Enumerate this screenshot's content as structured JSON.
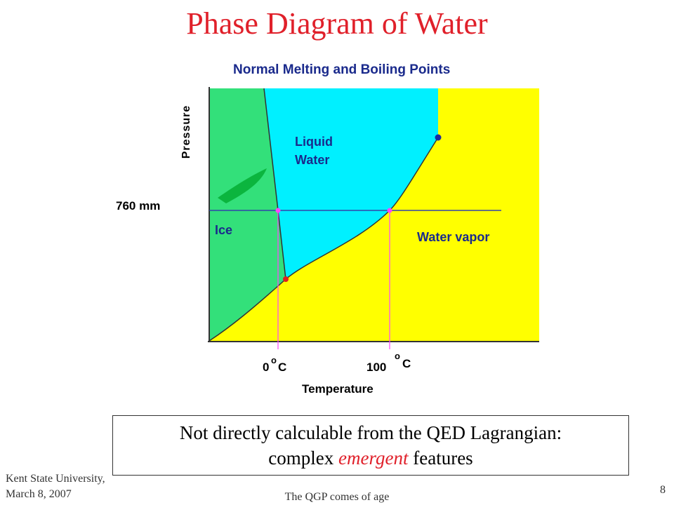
{
  "slide": {
    "title": "Phase Diagram of Water"
  },
  "diagram": {
    "heading": "Normal Melting and Boiling Points",
    "y_axis_label": "Pressure",
    "x_axis_label": "Temperature",
    "pressure_label": "760 mm",
    "region_labels": {
      "liquid_line1": "Liquid",
      "liquid_line2": "Water",
      "ice": "Ice",
      "vapor": "Water vapor"
    },
    "tick_labels": {
      "zero_num": "0",
      "zero_unit": "C",
      "hundred_num": "100",
      "hundred_unit": "C",
      "degree_glyph": "o"
    },
    "colors": {
      "ice": "#33e07a",
      "liquid": "#00f0ff",
      "vapor": "#ffff00",
      "heading": "#1a2a8c",
      "pressure_line": "#3344aa",
      "guide_lines": "#ff44ff",
      "triple_point": "#e02020",
      "critical_point": "#1a2aa0"
    }
  },
  "caption": {
    "line1": "Not directly calculable from the QED Lagrangian:",
    "line2_pre": "complex ",
    "line2_em": "emergent",
    "line2_post": " features"
  },
  "footer": {
    "left_line1": "Kent State University,",
    "left_line2": "March 8, 2007",
    "center": "The QGP comes of age",
    "page_number": "8"
  }
}
